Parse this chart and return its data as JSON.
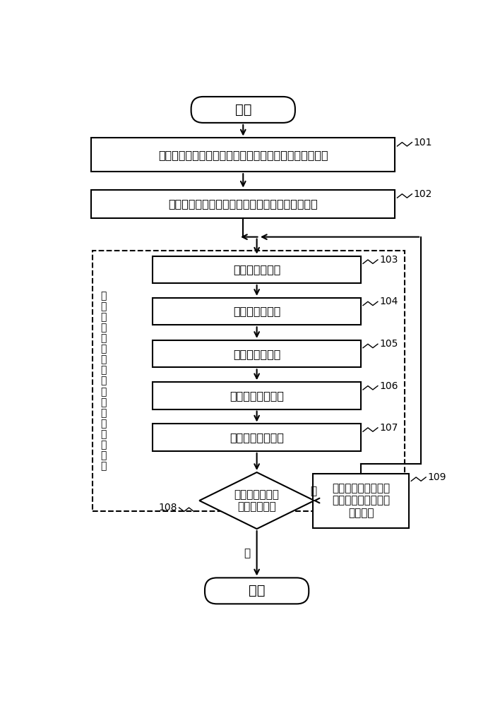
{
  "bg_color": "#ffffff",
  "start_end_text": [
    "开始",
    "结束"
  ],
  "step_boxes": [
    {
      "label": "101",
      "text": "将所有单元按照层次引用关系，自顶向下排序，形成链表"
    },
    {
      "label": "102",
      "text": "指定链表首个单元（版图最顶层单元）为当前单元"
    },
    {
      "label": "103",
      "text": "元素矩阵的识别"
    },
    {
      "label": "104",
      "text": "重叠区域的划分"
    },
    {
      "label": "105",
      "text": "重叠矩阵的合并"
    },
    {
      "label": "106",
      "text": "新生成单元的排序"
    },
    {
      "label": "107",
      "text": "打散剩余二级矩阵"
    }
  ],
  "diamond_text": "当前单元为链表\n最后一个单元",
  "diamond_label": "108",
  "no_box_text": "指定链表中当前单元\n的下一个单元为新的\n当前单元",
  "no_box_label": "109",
  "side_label_text": "在\n当\n前\n单\n元\n中\n对\n其\n子\n单\n元\n进\n行\n矩\n阵\n合\n并",
  "yes_text": "是",
  "no_text": "否",
  "lw": 1.5,
  "arrow_lw": 1.5
}
